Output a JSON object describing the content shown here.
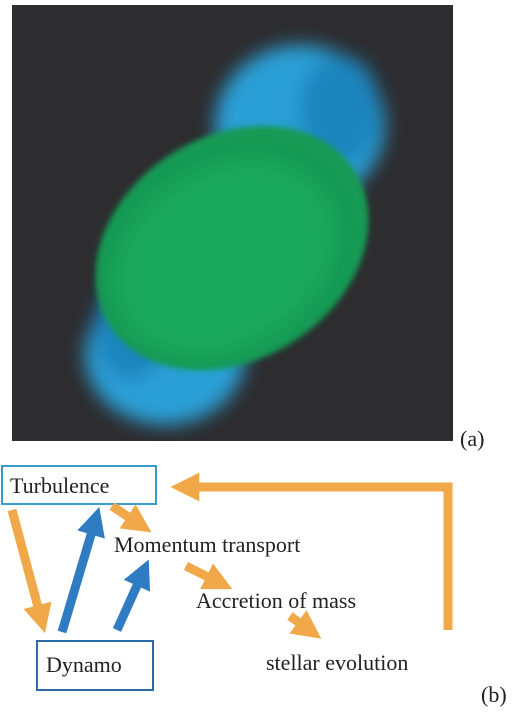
{
  "panel_a": {
    "label": "(a)"
  },
  "panel_b": {
    "label": "(b)",
    "nodes": [
      {
        "label": "Turbulence"
      },
      {
        "label": "Momentum transport"
      },
      {
        "label": "Accretion of mass"
      },
      {
        "label": "stellar evolution"
      },
      {
        "label": "Dynamo"
      }
    ]
  }
}
